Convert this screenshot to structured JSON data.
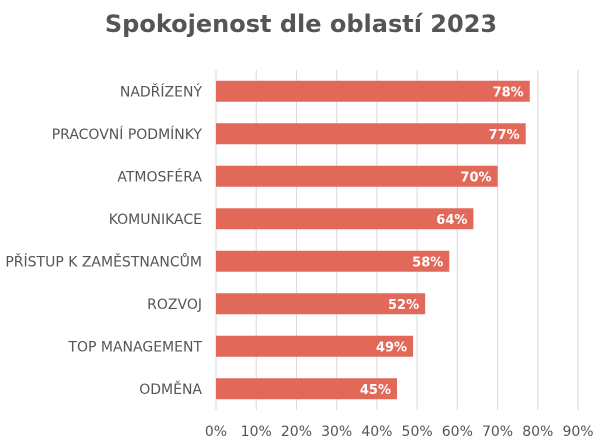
{
  "chart_data": {
    "type": "bar",
    "orientation": "horizontal",
    "title": "Spokojenost dle oblastí 2023",
    "categories": [
      "NADŘÍZENÝ",
      "PRACOVNÍ PODMÍNKY",
      "ATMOSFÉRA",
      "KOMUNIKACE",
      "PŘÍSTUP K ZAMĚSTNANCŮM",
      "ROZVOJ",
      "TOP MANAGEMENT",
      "ODMĚNA"
    ],
    "values": [
      78,
      77,
      70,
      64,
      58,
      52,
      49,
      45
    ],
    "data_labels": [
      "78%",
      "77%",
      "70%",
      "64%",
      "58%",
      "52%",
      "49%",
      "45%"
    ],
    "xlim": [
      0,
      90
    ],
    "xticks": [
      0,
      10,
      20,
      30,
      40,
      50,
      60,
      70,
      80,
      90
    ],
    "xtick_labels": [
      "0%",
      "10%",
      "20%",
      "30%",
      "40%",
      "50%",
      "60%",
      "70%",
      "80%",
      "90%"
    ],
    "xlabel": "",
    "ylabel": "",
    "grid": "vertical",
    "legend": "none",
    "bar_color": "#e2685a",
    "grid_color": "#d9d9d9",
    "text_color": "#555555",
    "label_color": "#ffffff"
  }
}
